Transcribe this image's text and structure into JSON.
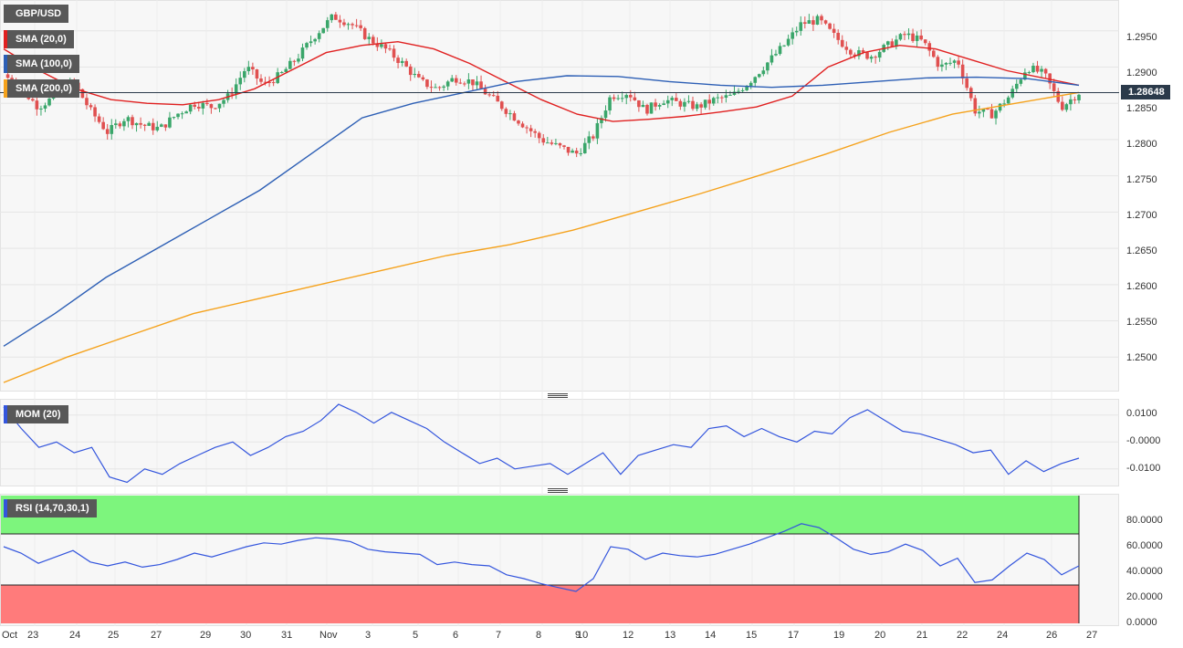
{
  "symbol": "GBP/USD",
  "indicators": {
    "sma20": {
      "label": "SMA (20,0)",
      "color": "#e02020"
    },
    "sma100": {
      "label": "SMA (100,0)",
      "color": "#2d5fb5"
    },
    "sma200": {
      "label": "SMA (200,0)",
      "color": "#f5a21c"
    },
    "mom": {
      "label": "MOM (20)",
      "color": "#3355dd"
    },
    "rsi": {
      "label": "RSI (14,70,30,1)",
      "color": "#3355dd"
    }
  },
  "current_price": "1.28648",
  "colors": {
    "bull": "#3aa66a",
    "bear": "#e05050",
    "overbought": "#7df57d",
    "oversold": "#ff7b7b",
    "price_line": "#2b3a4a"
  },
  "price_axis": [
    "1.2950",
    "1.2900",
    "1.2850",
    "1.2800",
    "1.2750",
    "1.2700",
    "1.2650",
    "1.2600",
    "1.2550",
    "1.2500"
  ],
  "mom_axis": [
    "0.0100",
    "-0.0000",
    "-0.0100"
  ],
  "rsi_axis": [
    "80.0000",
    "60.0000",
    "40.0000",
    "20.0000",
    "0.0000"
  ],
  "x_axis": [
    "Oct",
    "23",
    "24",
    "25",
    "27",
    "29",
    "30",
    "31",
    "Nov",
    "3",
    "5",
    "6",
    "7",
    "8",
    "9",
    "10",
    "12",
    "13",
    "14",
    "15",
    "17",
    "19",
    "20",
    "21",
    "22",
    "24",
    "26",
    "27"
  ],
  "chart_data": [
    {
      "type": "candlestick",
      "title": "GBP/USD",
      "ylim": [
        1.2455,
        1.299
      ],
      "x_ticks": [
        "Oct",
        "23",
        "24",
        "25",
        "27",
        "29",
        "30",
        "31",
        "Nov",
        "3",
        "5",
        "6",
        "7",
        "8",
        "9",
        "10",
        "12",
        "13",
        "14",
        "15",
        "17",
        "19",
        "20",
        "21",
        "22",
        "24",
        "26",
        "27"
      ],
      "y_ticks": [
        "1.2950",
        "1.2900",
        "1.2850",
        "1.2800",
        "1.2750",
        "1.2700",
        "1.2650",
        "1.2600",
        "1.2550",
        "1.2500"
      ],
      "last_price": 1.28648,
      "close_path": [
        1.289,
        1.287,
        1.2845,
        1.286,
        1.288,
        1.284,
        1.281,
        1.283,
        1.282,
        1.2815,
        1.2835,
        1.285,
        1.2845,
        1.286,
        1.29,
        1.2875,
        1.289,
        1.2915,
        1.2945,
        1.297,
        1.296,
        1.294,
        1.2925,
        1.2905,
        1.288,
        1.287,
        1.2885,
        1.288,
        1.286,
        1.284,
        1.282,
        1.28,
        1.279,
        1.278,
        1.2805,
        1.286,
        1.2865,
        1.284,
        1.2855,
        1.285,
        1.2845,
        1.2855,
        1.286,
        1.288,
        1.2905,
        1.293,
        1.296,
        1.2965,
        1.294,
        1.292,
        1.2915,
        1.293,
        1.2945,
        1.2935,
        1.29,
        1.291,
        1.284,
        1.2835,
        1.286,
        1.29,
        1.289,
        1.2845,
        1.28648
      ],
      "series": [
        {
          "name": "SMA (20,0)",
          "values": [
            1.2925,
            1.2895,
            1.287,
            1.2855,
            1.285,
            1.2848,
            1.2855,
            1.287,
            1.2895,
            1.292,
            1.293,
            1.2935,
            1.2925,
            1.2905,
            1.288,
            1.2855,
            1.2835,
            1.2825,
            1.2828,
            1.2832,
            1.2838,
            1.2845,
            1.286,
            1.29,
            1.292,
            1.293,
            1.2925,
            1.291,
            1.2895,
            1.2885,
            1.2875
          ]
        },
        {
          "name": "SMA (100,0)",
          "values": [
            1.2515,
            1.256,
            1.261,
            1.265,
            1.269,
            1.273,
            1.278,
            1.283,
            1.285,
            1.2865,
            1.288,
            1.2888,
            1.2887,
            1.288,
            1.2875,
            1.2872,
            1.2875,
            1.288,
            1.2885,
            1.2886,
            1.2884,
            1.2875
          ]
        },
        {
          "name": "SMA (200,0)",
          "values": [
            1.2465,
            1.25,
            1.253,
            1.256,
            1.258,
            1.26,
            1.262,
            1.264,
            1.2655,
            1.2675,
            1.27,
            1.2725,
            1.2752,
            1.278,
            1.281,
            1.2835,
            1.285,
            1.2865
          ]
        }
      ]
    },
    {
      "type": "line",
      "title": "MOM (20)",
      "ylim": [
        -0.0155,
        0.015
      ],
      "y_ticks": [
        "0.0100",
        "-0.0000",
        "-0.0100"
      ],
      "series": [
        {
          "name": "MOM (20)",
          "values": [
            0.013,
            0.005,
            -0.002,
            0.0,
            -0.004,
            -0.002,
            -0.013,
            -0.015,
            -0.01,
            -0.012,
            -0.008,
            -0.005,
            -0.002,
            0.0,
            -0.005,
            -0.002,
            0.002,
            0.004,
            0.008,
            0.014,
            0.011,
            0.007,
            0.011,
            0.008,
            0.005,
            0.0,
            -0.004,
            -0.008,
            -0.006,
            -0.01,
            -0.009,
            -0.008,
            -0.012,
            -0.008,
            -0.004,
            -0.012,
            -0.005,
            -0.003,
            -0.001,
            -0.002,
            0.005,
            0.006,
            0.002,
            0.005,
            0.002,
            0.0,
            0.004,
            0.003,
            0.009,
            0.012,
            0.008,
            0.004,
            0.003,
            0.001,
            -0.001,
            -0.004,
            -0.003,
            -0.012,
            -0.007,
            -0.011,
            -0.008,
            -0.006
          ]
        }
      ]
    },
    {
      "type": "line",
      "title": "RSI (14,70,30,1)",
      "ylim": [
        0,
        100
      ],
      "y_ticks": [
        "80.0000",
        "60.0000",
        "40.0000",
        "20.0000",
        "0.0000"
      ],
      "bands": {
        "overbought": 70,
        "oversold": 30
      },
      "series": [
        {
          "name": "RSI (14,70,30,1)",
          "values": [
            60,
            55,
            47,
            52,
            57,
            48,
            45,
            48,
            44,
            46,
            50,
            55,
            52,
            56,
            60,
            63,
            62,
            65,
            67,
            66,
            64,
            58,
            56,
            55,
            54,
            46,
            48,
            46,
            45,
            38,
            35,
            31,
            28,
            25,
            35,
            60,
            58,
            50,
            55,
            53,
            52,
            54,
            58,
            62,
            67,
            72,
            78,
            75,
            67,
            58,
            54,
            56,
            62,
            57,
            45,
            51,
            32,
            34,
            45,
            55,
            50,
            38,
            45
          ]
        }
      ]
    }
  ]
}
